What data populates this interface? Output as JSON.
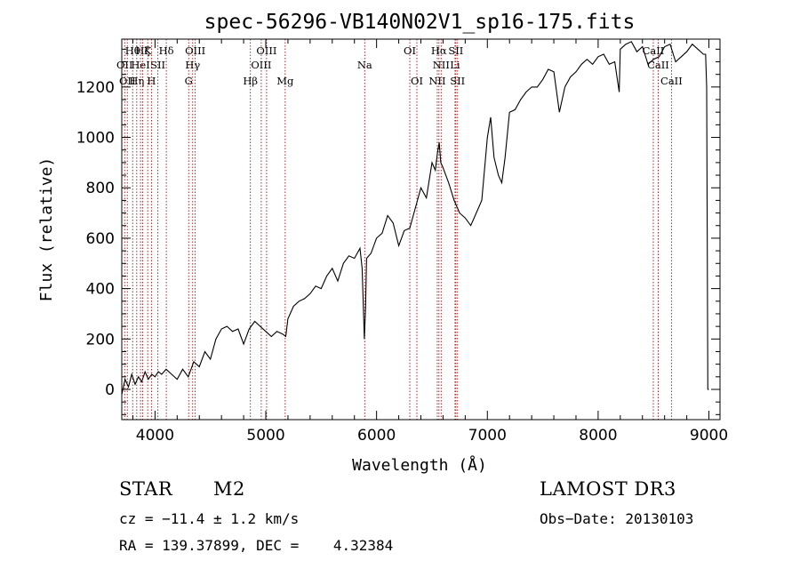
{
  "chart_data": {
    "type": "line",
    "title": "spec-56296-VB140N02V1_sp16-175.fits",
    "xlabel": "Wavelength (Å)",
    "ylabel": "Flux (relative)",
    "xlim": [
      3700,
      9100
    ],
    "ylim": [
      -120,
      1390
    ],
    "xticks": [
      4000,
      5000,
      6000,
      7000,
      8000,
      9000
    ],
    "xtick_labels": [
      "4000",
      "5000",
      "6000",
      "7000",
      "8000",
      "9000"
    ],
    "yticks": [
      0,
      200,
      400,
      600,
      800,
      1000,
      1200
    ],
    "ytick_labels": [
      "0",
      "200",
      "400",
      "600",
      "800",
      "1000",
      "1200"
    ],
    "series": [
      {
        "name": "flux",
        "x": [
          3700,
          3730,
          3760,
          3790,
          3820,
          3850,
          3880,
          3910,
          3940,
          3970,
          4000,
          4030,
          4060,
          4100,
          4150,
          4200,
          4250,
          4300,
          4350,
          4400,
          4450,
          4500,
          4550,
          4600,
          4650,
          4700,
          4750,
          4800,
          4850,
          4900,
          4950,
          5000,
          5050,
          5100,
          5150,
          5180,
          5200,
          5250,
          5300,
          5350,
          5400,
          5450,
          5500,
          5550,
          5600,
          5650,
          5700,
          5750,
          5800,
          5850,
          5870,
          5890,
          5900,
          5910,
          5950,
          6000,
          6050,
          6100,
          6150,
          6200,
          6250,
          6300,
          6350,
          6400,
          6450,
          6500,
          6530,
          6550,
          6565,
          6580,
          6600,
          6650,
          6700,
          6750,
          6800,
          6850,
          6900,
          6950,
          7000,
          7030,
          7060,
          7100,
          7130,
          7160,
          7200,
          7250,
          7300,
          7350,
          7400,
          7450,
          7500,
          7550,
          7600,
          7650,
          7700,
          7750,
          7800,
          7850,
          7900,
          7950,
          8000,
          8050,
          8100,
          8150,
          8190,
          8200,
          8250,
          8300,
          8350,
          8400,
          8450,
          8500,
          8550,
          8600,
          8650,
          8700,
          8750,
          8800,
          8850,
          8900,
          8950,
          8970,
          8980,
          8990,
          9000
        ],
        "y": [
          -20,
          40,
          10,
          60,
          20,
          50,
          30,
          70,
          40,
          60,
          50,
          70,
          60,
          80,
          60,
          40,
          80,
          50,
          110,
          90,
          150,
          120,
          200,
          240,
          250,
          230,
          240,
          180,
          240,
          270,
          250,
          230,
          210,
          230,
          220,
          210,
          280,
          330,
          350,
          360,
          380,
          410,
          400,
          450,
          480,
          430,
          500,
          530,
          520,
          560,
          480,
          200,
          320,
          520,
          540,
          600,
          620,
          690,
          660,
          570,
          630,
          640,
          720,
          800,
          760,
          900,
          870,
          940,
          980,
          900,
          880,
          820,
          750,
          700,
          680,
          650,
          700,
          750,
          1000,
          1080,
          920,
          850,
          820,
          920,
          1100,
          1110,
          1150,
          1180,
          1200,
          1200,
          1230,
          1270,
          1260,
          1100,
          1200,
          1240,
          1260,
          1290,
          1310,
          1290,
          1320,
          1330,
          1290,
          1300,
          1180,
          1350,
          1370,
          1380,
          1340,
          1360,
          1290,
          1310,
          1320,
          1360,
          1370,
          1300,
          1320,
          1340,
          1370,
          1350,
          1330,
          1330,
          1200,
          0,
          0
        ]
      }
    ],
    "lines": [
      {
        "wl": 3726,
        "label": "OII",
        "row": 2
      },
      {
        "wl": 3750,
        "label": "OII",
        "row": 3
      },
      {
        "wl": 3798,
        "label": "Hθ",
        "row": 1
      },
      {
        "wl": 3835,
        "label": "Hη",
        "row": 3
      },
      {
        "wl": 3869,
        "label": "HeI",
        "row": 2
      },
      {
        "wl": 3889,
        "label": "Hζ",
        "row": 1
      },
      {
        "wl": 3934,
        "label": "K",
        "row": 1
      },
      {
        "wl": 3968,
        "label": "H",
        "row": 3
      },
      {
        "wl": 4026,
        "label": "SII",
        "row": 2
      },
      {
        "wl": 4102,
        "label": "Hδ",
        "row": 1
      },
      {
        "wl": 4304,
        "label": "G",
        "row": 3
      },
      {
        "wl": 4340,
        "label": "Hγ",
        "row": 2
      },
      {
        "wl": 4363,
        "label": "OIII",
        "row": 1
      },
      {
        "wl": 4861,
        "label": "Hβ",
        "row": 3
      },
      {
        "wl": 4959,
        "label": "OIII",
        "row": 2
      },
      {
        "wl": 5007,
        "label": "OIII",
        "row": 1
      },
      {
        "wl": 5175,
        "label": "Mg",
        "row": 3
      },
      {
        "wl": 5893,
        "label": "Na",
        "row": 2
      },
      {
        "wl": 6300,
        "label": "OI",
        "row": 1
      },
      {
        "wl": 6364,
        "label": "OI",
        "row": 3
      },
      {
        "wl": 6548,
        "label": "NII",
        "row": 3
      },
      {
        "wl": 6563,
        "label": "Hα",
        "row": 1
      },
      {
        "wl": 6583,
        "label": "NII",
        "row": 2
      },
      {
        "wl": 6708,
        "label": "Li",
        "row": 2
      },
      {
        "wl": 6716,
        "label": "SII",
        "row": 1
      },
      {
        "wl": 6731,
        "label": "SII",
        "row": 3
      },
      {
        "wl": 8498,
        "label": "CaII",
        "row": 1
      },
      {
        "wl": 8542,
        "label": "CaII",
        "row": 2
      },
      {
        "wl": 8662,
        "label": "CaII",
        "row": 3
      }
    ]
  },
  "info": {
    "class": "STAR",
    "subclass": "M2",
    "survey": "LAMOST DR3",
    "cz": "cz = −11.4 ± 1.2 km/s",
    "obs_date": "Obs−Date: 20130103",
    "coords": "RA = 139.37899, DEC =    4.32384"
  },
  "colors": {
    "spectrum": "#000000",
    "lines": "#a01010",
    "axes": "#000000",
    "background": "#ffffff"
  }
}
